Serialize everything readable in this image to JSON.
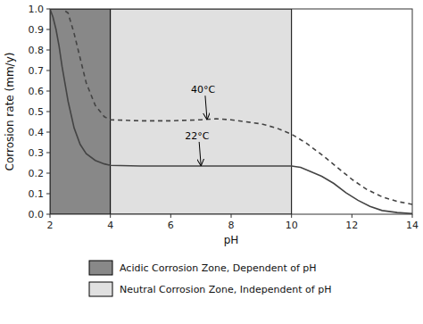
{
  "chart_data": {
    "type": "line",
    "xlabel": "pH",
    "ylabel": "Corrosion rate (mm/y)",
    "xlim": [
      2,
      14
    ],
    "ylim": [
      0,
      1.0
    ],
    "xticks": [
      2,
      4,
      6,
      8,
      10,
      12,
      14
    ],
    "yticks": [
      {
        "value": 0,
        "label": "0.0"
      },
      0.1,
      0.2,
      0.3,
      0.4,
      0.5,
      0.6,
      0.7,
      0.8,
      0.9,
      {
        "value": 1,
        "label": "1.0"
      }
    ],
    "grid": false,
    "legend": "bottom",
    "zones": [
      {
        "name": "Acidic Corrosion Zone, Dependent of pH",
        "color": "#888888",
        "start": 2,
        "end": 4
      },
      {
        "name": "Neutral Corrosion Zone, Independent of pH",
        "color": "#e0e0e0",
        "start": 4,
        "end": 10
      }
    ],
    "series": [
      {
        "color": "#444444",
        "line_style": "solid",
        "x": [
          2.0,
          2.1,
          2.2,
          2.3,
          2.4,
          2.6,
          2.8,
          3.0,
          3.2,
          3.5,
          3.8,
          4.0,
          5.0,
          6.0,
          7.0,
          8.0,
          9.0,
          10.0,
          10.3,
          10.6,
          11.0,
          11.4,
          11.8,
          12.2,
          12.6,
          13.0,
          13.5,
          14.0
        ],
        "values": [
          1.0,
          0.96,
          0.9,
          0.82,
          0.72,
          0.55,
          0.42,
          0.34,
          0.295,
          0.262,
          0.245,
          0.238,
          0.235,
          0.235,
          0.235,
          0.235,
          0.235,
          0.235,
          0.228,
          0.21,
          0.185,
          0.15,
          0.105,
          0.068,
          0.038,
          0.018,
          0.008,
          0.003
        ]
      },
      {
        "color": "#444444",
        "line_style": "dashed",
        "x": [
          2.0,
          2.1,
          2.2,
          2.4,
          2.6,
          2.8,
          3.0,
          3.2,
          3.5,
          3.8,
          4.0,
          5.0,
          6.0,
          7.0,
          7.5,
          8.0,
          8.5,
          9.0,
          9.5,
          10.0,
          10.5,
          11.0,
          11.5,
          12.0,
          12.5,
          13.0,
          13.5,
          14.0
        ],
        "values": [
          1.0,
          1.0,
          1.0,
          1.0,
          0.98,
          0.88,
          0.76,
          0.64,
          0.53,
          0.475,
          0.46,
          0.455,
          0.455,
          0.46,
          0.465,
          0.46,
          0.45,
          0.44,
          0.42,
          0.39,
          0.345,
          0.29,
          0.23,
          0.17,
          0.12,
          0.085,
          0.062,
          0.048
        ]
      }
    ],
    "annotations": [
      {
        "text": "40°C",
        "x": 7.2,
        "y": 0.46
      },
      {
        "text": "22°C",
        "x": 7.0,
        "y": 0.235
      }
    ]
  }
}
